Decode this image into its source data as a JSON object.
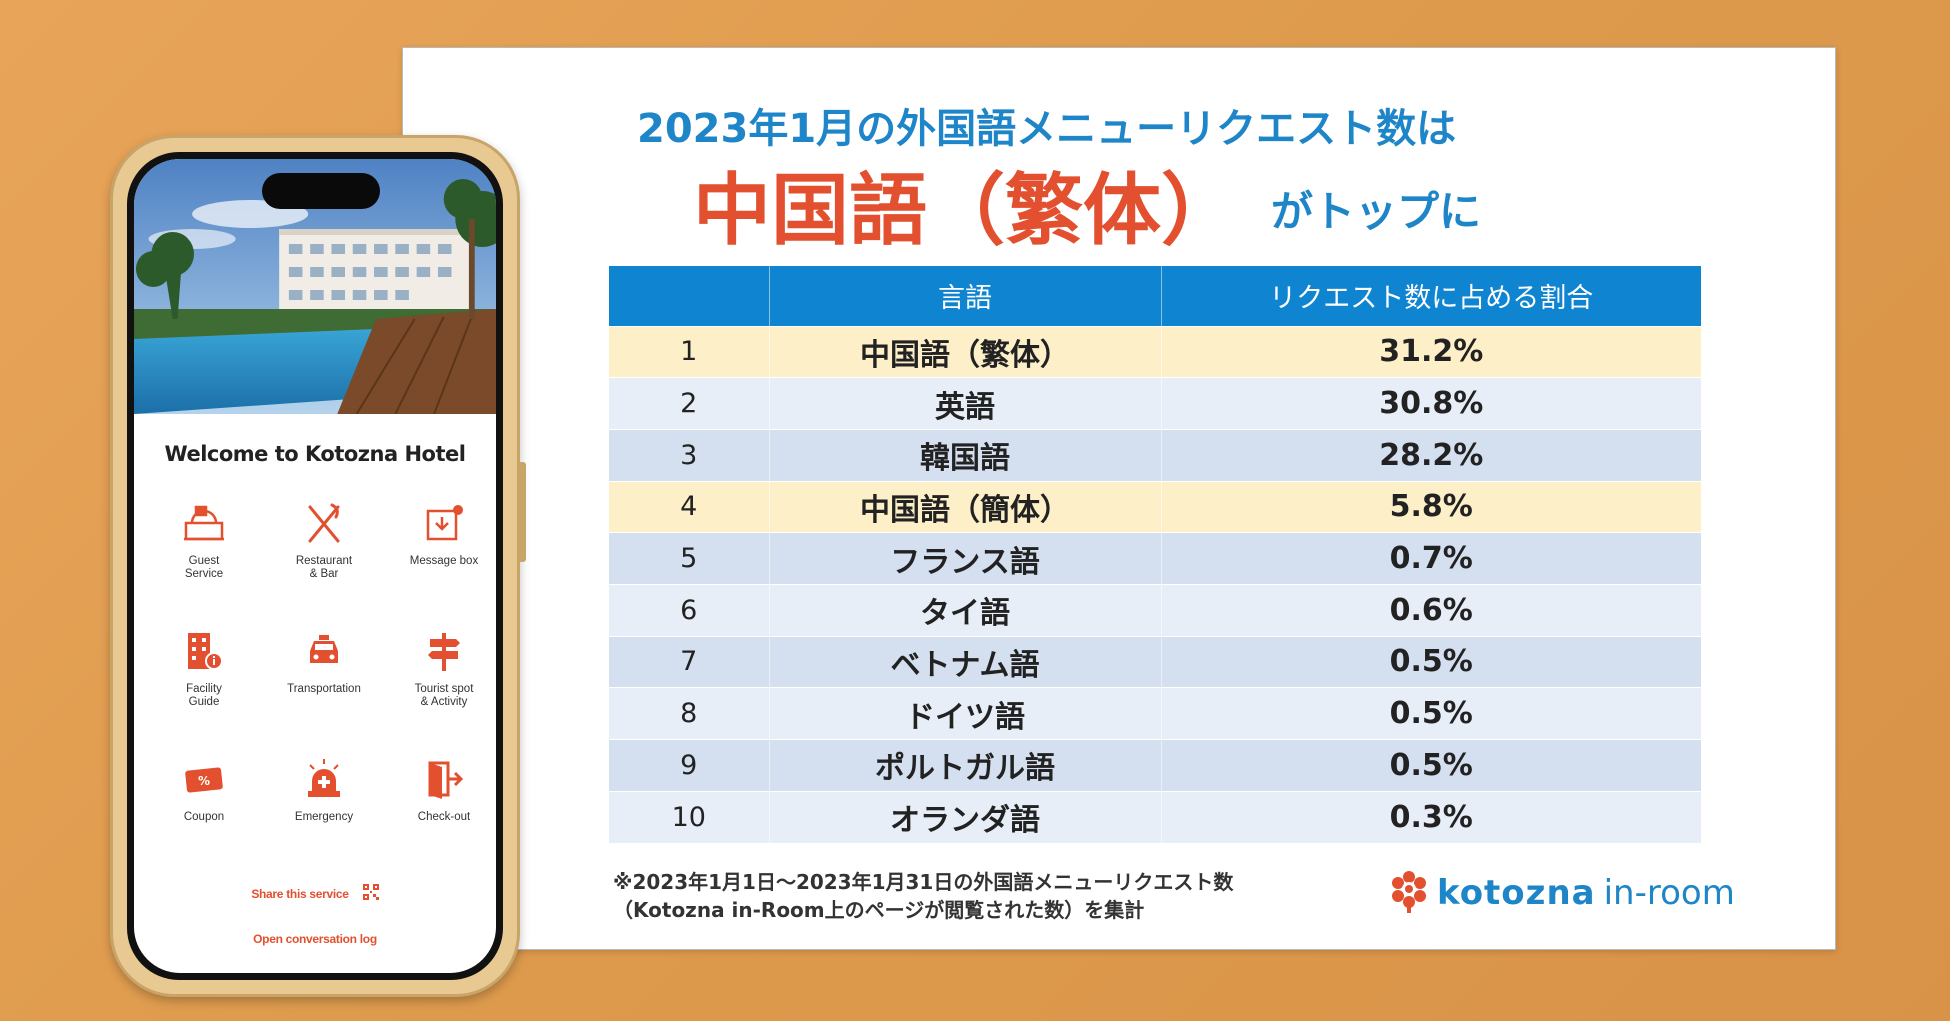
{
  "headline": {
    "line1": "2023年1月の外国語メニューリクエスト数は",
    "line2": "中国語（繁体）",
    "line3": "がトップに"
  },
  "table": {
    "headers": [
      "",
      "言語",
      "リクエスト数に占める割合"
    ],
    "rows": [
      {
        "rank": "1",
        "language": "中国語（繁体）",
        "share": "31.2%"
      },
      {
        "rank": "2",
        "language": "英語",
        "share": "30.8%"
      },
      {
        "rank": "3",
        "language": "韓国語",
        "share": "28.2%"
      },
      {
        "rank": "4",
        "language": "中国語（簡体）",
        "share": "5.8%"
      },
      {
        "rank": "5",
        "language": "フランス語",
        "share": "0.7%"
      },
      {
        "rank": "6",
        "language": "タイ語",
        "share": "0.6%"
      },
      {
        "rank": "7",
        "language": "ベトナム語",
        "share": "0.5%"
      },
      {
        "rank": "8",
        "language": "ドイツ語",
        "share": "0.5%"
      },
      {
        "rank": "9",
        "language": "ポルトガル語",
        "share": "0.5%"
      },
      {
        "rank": "10",
        "language": "オランダ語",
        "share": "0.3%"
      }
    ]
  },
  "footnote": {
    "line1": "※2023年1月1日〜2023年1月31日の外国語メニューリクエスト数",
    "line2": "（Kotozna in-Room上のページが閲覧された数）を集計"
  },
  "brand": {
    "name": "kotozna",
    "sub": "in-room",
    "icon": "flower-logo-icon"
  },
  "phone": {
    "welcome": "Welcome to Kotozna Hotel",
    "tiles": [
      {
        "label": "Guest\nService",
        "icon": "reception-bell-icon"
      },
      {
        "label": "Restaurant\n& Bar",
        "icon": "fork-knife-icon"
      },
      {
        "label": "Message box",
        "icon": "inbox-icon"
      },
      {
        "label": "Facility\nGuide",
        "icon": "building-info-icon"
      },
      {
        "label": "Transportation",
        "icon": "taxi-icon"
      },
      {
        "label": "Tourist spot\n& Activity",
        "icon": "signpost-icon"
      },
      {
        "label": "Coupon",
        "icon": "coupon-icon"
      },
      {
        "label": "Emergency",
        "icon": "siren-icon"
      },
      {
        "label": "Check-out",
        "icon": "door-exit-icon"
      }
    ],
    "share_label": "Share this service",
    "log_label": "Open conversation log"
  },
  "colors": {
    "accent_blue": "#0f84d0",
    "headline_blue": "#1e86c8",
    "headline_red": "#e2502f",
    "highlight_row": "#fdf0c8",
    "app_orange": "#e2502f"
  }
}
